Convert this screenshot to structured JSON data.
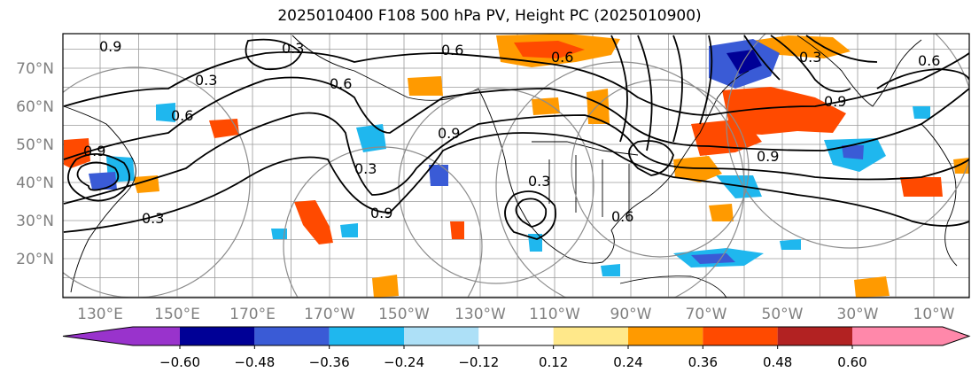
{
  "title": "2025010400 F108 500 hPa PV, Height PC (2025010900)",
  "map": {
    "lat_labels": [
      "70°N",
      "60°N",
      "50°N",
      "40°N",
      "30°N",
      "20°N"
    ],
    "lat_values": [
      70,
      60,
      50,
      40,
      30,
      20
    ],
    "lon_labels": [
      "130°E",
      "150°E",
      "170°E",
      "170°W",
      "150°W",
      "130°W",
      "110°W",
      "90°W",
      "70°W",
      "50°W",
      "30°W",
      "10°W"
    ],
    "contour_labels": [
      "0.6",
      "0.9",
      "0.3",
      "0.6",
      "0.9",
      "0.3",
      "0.6",
      "0.9",
      "0.3",
      "0.9",
      "0.6",
      "0.9",
      "0.3",
      "0.6",
      "0.9",
      "0.3",
      "0.3",
      "0.6"
    ],
    "colors": {
      "gridline": "#9a9a9a",
      "coast": "#000000",
      "contour": "#000000",
      "circle": "#8c8c8c"
    }
  },
  "colorbar": {
    "tick_labels": [
      "−0.60",
      "−0.48",
      "−0.36",
      "−0.24",
      "−0.12",
      "0.12",
      "0.24",
      "0.36",
      "0.48",
      "0.60"
    ],
    "bins": [
      {
        "color": "#9933cc"
      },
      {
        "color": "#000096"
      },
      {
        "color": "#3a5bd6"
      },
      {
        "color": "#1fb7ee"
      },
      {
        "color": "#ade0f7"
      },
      {
        "color": "#ffffff"
      },
      {
        "color": "#ffe88a"
      },
      {
        "color": "#ff9a00"
      },
      {
        "color": "#ff4a00"
      },
      {
        "color": "#b22222"
      },
      {
        "color": "#ff88aa"
      }
    ]
  }
}
